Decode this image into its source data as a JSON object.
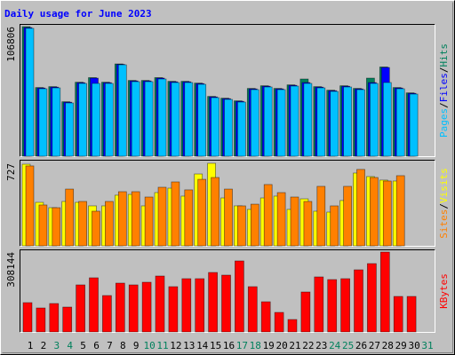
{
  "title": "Daily usage for June 2023",
  "categories": [
    "1",
    "2",
    "3",
    "4",
    "5",
    "6",
    "7",
    "8",
    "9",
    "10",
    "11",
    "12",
    "13",
    "14",
    "15",
    "16",
    "17",
    "18",
    "19",
    "20",
    "21",
    "22",
    "23",
    "24",
    "25",
    "26",
    "27",
    "28",
    "29",
    "30",
    "31"
  ],
  "category_colors": [
    "#000000",
    "#000000",
    "#00805c",
    "#00805c",
    "#000000",
    "#000000",
    "#000000",
    "#000000",
    "#000000",
    "#00805c",
    "#00805c",
    "#000000",
    "#000000",
    "#000000",
    "#000000",
    "#000000",
    "#00805c",
    "#00805c",
    "#000000",
    "#000000",
    "#000000",
    "#000000",
    "#000000",
    "#00805c",
    "#00805c",
    "#000000",
    "#000000",
    "#000000",
    "#000000",
    "#000000",
    "#00805c"
  ],
  "legend_separator": "/",
  "chart_data": [
    {
      "type": "bar",
      "ylim": [
        0,
        106806
      ],
      "yticks": [
        106806
      ],
      "series": [
        {
          "name": "Hits",
          "color": "#00805c",
          "values": [
            106806,
            56594,
            57326,
            44890,
            60983,
            64772,
            60983,
            76076,
            62446,
            62446,
            64772,
            61715,
            61715,
            60252,
            49279,
            47816,
            45622,
            55863,
            58057,
            55863,
            58789,
            63641,
            57326,
            54400,
            58057,
            55863,
            64372,
            73550,
            56594,
            52205,
            0
          ]
        },
        {
          "name": "Files",
          "color": "#0000ff",
          "values": [
            106000,
            56194,
            56926,
            44490,
            60583,
            64372,
            60583,
            75700,
            62046,
            62046,
            64372,
            61315,
            61315,
            59852,
            48879,
            47416,
            45222,
            55463,
            57657,
            55463,
            58389,
            60700,
            56926,
            54000,
            57657,
            55463,
            60700,
            73150,
            56194,
            51805,
            0
          ]
        },
        {
          "name": "Pages",
          "color": "#00c0ff",
          "values": [
            105400,
            55594,
            56326,
            43890,
            59983,
            59983,
            59983,
            75345,
            61446,
            61446,
            63641,
            60715,
            60715,
            59252,
            48279,
            46816,
            44622,
            54863,
            57057,
            54863,
            57789,
            59983,
            56326,
            53400,
            57057,
            54863,
            59983,
            60715,
            55594,
            51205,
            0
          ]
        }
      ]
    },
    {
      "type": "bar",
      "ylim": [
        0,
        727
      ],
      "yticks": [
        727
      ],
      "series": [
        {
          "name": "Visits",
          "color": "#ffff00",
          "values": [
            719,
            383,
            336,
            391,
            383,
            352,
            352,
            446,
            453,
            352,
            469,
            508,
            438,
            633,
            727,
            422,
            352,
            321,
            422,
            438,
            321,
            414,
            305,
            297,
            399,
            641,
            610,
            579,
            571,
            0,
            0
          ]
        },
        {
          "name": "Sites",
          "color": "#ff8000",
          "values": [
            704,
            360,
            336,
            500,
            391,
            305,
            391,
            477,
            477,
            430,
            516,
            563,
            493,
            586,
            602,
            500,
            352,
            367,
            540,
            469,
            430,
            391,
            524,
            352,
            524,
            673,
            602,
            571,
            618,
            0,
            0
          ]
        }
      ]
    },
    {
      "type": "bar",
      "ylim": [
        0,
        308144
      ],
      "yticks": [
        308144
      ],
      "series": [
        {
          "name": "KBytes",
          "color": "#ff0000",
          "values": [
            112992,
            92448,
            109568,
            95872,
            181472,
            208864,
            140384,
            188320,
            181472,
            191744,
            215712,
            174624,
            205440,
            205440,
            229408,
            219136,
            273920,
            174624,
            116416,
            75328,
            47936,
            154080,
            212288,
            202016,
            205440,
            239680,
            263648,
            308144,
            136960,
            136960,
            0
          ]
        }
      ]
    }
  ]
}
